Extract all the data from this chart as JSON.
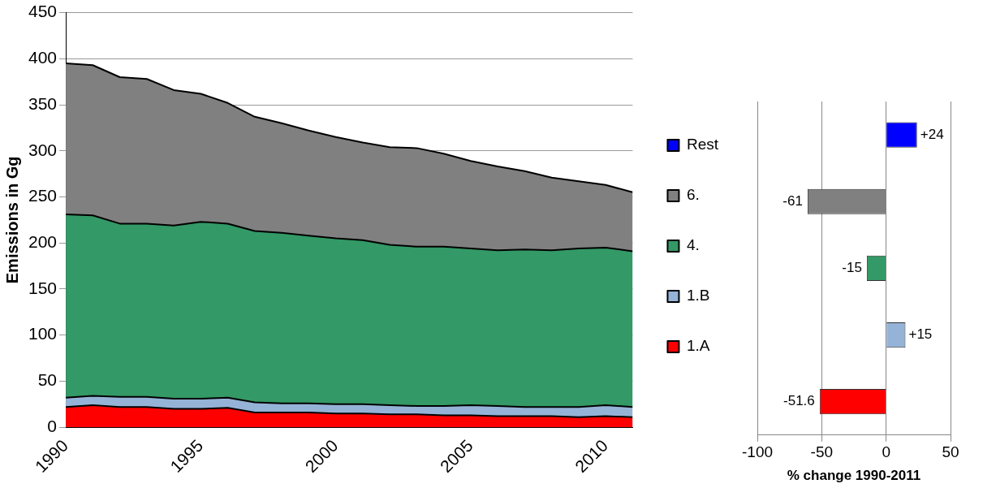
{
  "chart_data": [
    {
      "type": "area",
      "stacked": true,
      "ylabel": "Emissions in Gg",
      "x": [
        1990,
        1991,
        1992,
        1993,
        1994,
        1995,
        1996,
        1997,
        1998,
        1999,
        2000,
        2001,
        2002,
        2003,
        2004,
        2005,
        2006,
        2007,
        2008,
        2009,
        2010,
        2011
      ],
      "series": [
        {
          "name": "1.A",
          "color": "#ff0000",
          "values": [
            22,
            24,
            22,
            22,
            20,
            20,
            21,
            16,
            16,
            16,
            15,
            15,
            14,
            14,
            13,
            13,
            12,
            12,
            12,
            11,
            12,
            11
          ]
        },
        {
          "name": "1.B",
          "color": "#95b3d7",
          "values": [
            10,
            10,
            11,
            11,
            11,
            11,
            11,
            11,
            10,
            10,
            10,
            10,
            10,
            9,
            10,
            11,
            11,
            10,
            10,
            11,
            12,
            11
          ]
        },
        {
          "name": "4.",
          "color": "#339966",
          "values": [
            199,
            196,
            188,
            188,
            188,
            192,
            189,
            186,
            185,
            182,
            180,
            178,
            174,
            173,
            173,
            170,
            169,
            171,
            170,
            172,
            171,
            169
          ]
        },
        {
          "name": "6.",
          "color": "#808080",
          "values": [
            164,
            163,
            159,
            157,
            147,
            139,
            131,
            124,
            119,
            114,
            110,
            106,
            106,
            107,
            101,
            95,
            91,
            85,
            79,
            73,
            68,
            64
          ]
        },
        {
          "name": "Rest",
          "color": "#0000ff",
          "values": [
            null,
            null,
            null,
            null,
            null,
            null,
            null,
            null,
            null,
            null,
            null,
            null,
            null,
            null,
            null,
            null,
            null,
            null,
            null,
            null,
            null,
            null
          ]
        }
      ],
      "xlim": [
        1990,
        2011
      ],
      "xticks": [
        1990,
        1995,
        2000,
        2005,
        2010
      ],
      "ylim": [
        0,
        450
      ],
      "yticks": [
        0,
        50,
        100,
        150,
        200,
        250,
        300,
        350,
        400,
        450
      ],
      "grid": "y",
      "legend": "right"
    },
    {
      "type": "bar",
      "orientation": "horizontal",
      "xlabel": "% change 1990-2011",
      "categories": [
        null,
        null,
        null,
        null,
        null
      ],
      "values": [
        24,
        -61,
        -15,
        15,
        -51.6
      ],
      "colors": [
        "#0000ff",
        "#808080",
        "#339966",
        "#95b3d7",
        "#ff0000"
      ],
      "value_labels": [
        "+24",
        "-61",
        "-15",
        "+15",
        "-51.6"
      ],
      "xlim": [
        -100,
        50
      ],
      "xticks": [
        -100,
        -50,
        0,
        50
      ],
      "grid": "x",
      "tick_labels": "x"
    }
  ]
}
